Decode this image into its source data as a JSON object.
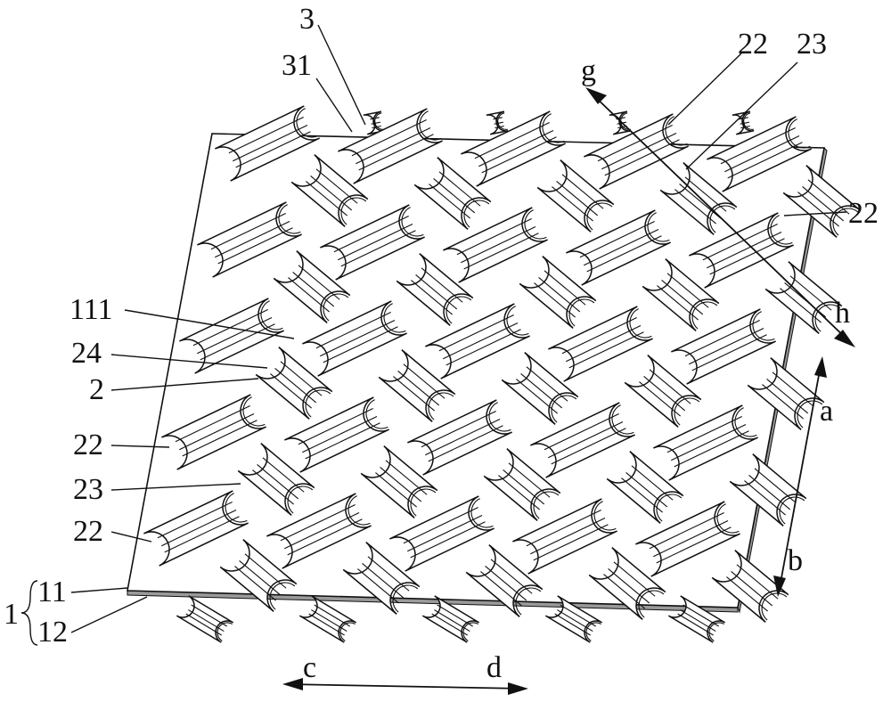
{
  "figure": {
    "description_labels": {
      "l3": "3",
      "l31": "31",
      "l22_top": "22",
      "l23_top": "23",
      "l22_right": "22",
      "lg": "g",
      "lh": "h",
      "la": "a",
      "lb": "b",
      "lc": "c",
      "ld": "d",
      "l111": "111",
      "l24": "24",
      "l2": "2",
      "l22_left1": "22",
      "l23_left": "23",
      "l22_left2": "22",
      "l1": "1",
      "l11": "11",
      "l12": "12"
    }
  }
}
